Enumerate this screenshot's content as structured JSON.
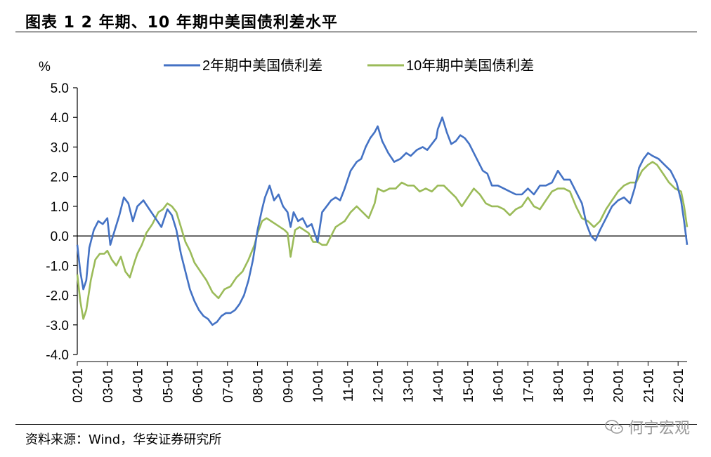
{
  "page_title": "图表 1 2 年期、10 年期中美国债利差水平",
  "source": "资料来源：Wind，华安证券研究所",
  "watermark": "何宁宏观",
  "colors": {
    "series1": "#4472c4",
    "series2": "#9bbb59",
    "axis": "#000000"
  },
  "chart_data": {
    "type": "line",
    "title": "",
    "ylabel": "%",
    "xlabel": "",
    "ylim": [
      -4.0,
      5.0
    ],
    "yticks": [
      "5.0",
      "4.0",
      "3.0",
      "2.0",
      "1.0",
      "0.0",
      "-1.0",
      "-2.0",
      "-3.0",
      "-4.0"
    ],
    "x_tick_labels": [
      "02-01",
      "03-01",
      "04-01",
      "05-01",
      "06-01",
      "07-01",
      "08-01",
      "09-01",
      "10-01",
      "11-01",
      "12-01",
      "13-01",
      "14-01",
      "15-01",
      "16-01",
      "17-01",
      "18-01",
      "19-01",
      "20-01",
      "21-01",
      "22-01"
    ],
    "x_range": [
      2002.0,
      2022.3
    ],
    "legend": [
      "2年期中美国债利差",
      "10年期中美国债利差"
    ],
    "series": [
      {
        "name": "2年期中美国债利差",
        "x": [
          2002.0,
          2002.1,
          2002.2,
          2002.3,
          2002.4,
          2002.55,
          2002.7,
          2002.85,
          2003.0,
          2003.1,
          2003.25,
          2003.4,
          2003.55,
          2003.7,
          2003.85,
          2004.0,
          2004.2,
          2004.4,
          2004.6,
          2004.8,
          2005.0,
          2005.15,
          2005.3,
          2005.45,
          2005.6,
          2005.75,
          2005.9,
          2006.05,
          2006.2,
          2006.35,
          2006.5,
          2006.65,
          2006.8,
          2006.95,
          2007.1,
          2007.25,
          2007.4,
          2007.55,
          2007.7,
          2007.85,
          2008.0,
          2008.15,
          2008.25,
          2008.4,
          2008.55,
          2008.7,
          2008.85,
          2009.0,
          2009.1,
          2009.2,
          2009.35,
          2009.5,
          2009.65,
          2009.8,
          2010.0,
          2010.15,
          2010.3,
          2010.45,
          2010.6,
          2010.75,
          2010.9,
          2011.1,
          2011.3,
          2011.45,
          2011.6,
          2011.75,
          2011.9,
          2012.0,
          2012.15,
          2012.35,
          2012.55,
          2012.75,
          2012.95,
          2013.1,
          2013.3,
          2013.5,
          2013.65,
          2013.8,
          2013.95,
          2014.0,
          2014.15,
          2014.3,
          2014.45,
          2014.6,
          2014.75,
          2014.9,
          2015.05,
          2015.2,
          2015.35,
          2015.5,
          2015.65,
          2015.8,
          2016.0,
          2016.2,
          2016.4,
          2016.6,
          2016.8,
          2017.0,
          2017.2,
          2017.4,
          2017.6,
          2017.8,
          2018.0,
          2018.2,
          2018.4,
          2018.6,
          2018.8,
          2018.95,
          2019.1,
          2019.25,
          2019.4,
          2019.6,
          2019.8,
          2020.0,
          2020.2,
          2020.4,
          2020.55,
          2020.7,
          2020.85,
          2021.0,
          2021.15,
          2021.35,
          2021.55,
          2021.75,
          2021.95,
          2022.1,
          2022.2,
          2022.3
        ],
        "values": [
          -0.3,
          -1.2,
          -1.8,
          -1.5,
          -0.4,
          0.2,
          0.5,
          0.4,
          0.6,
          -0.3,
          0.2,
          0.7,
          1.3,
          1.1,
          0.5,
          1.0,
          1.2,
          0.9,
          0.6,
          0.3,
          0.9,
          0.7,
          0.2,
          -0.6,
          -1.2,
          -1.8,
          -2.2,
          -2.5,
          -2.7,
          -2.8,
          -3.0,
          -2.9,
          -2.7,
          -2.6,
          -2.6,
          -2.5,
          -2.3,
          -2.0,
          -1.5,
          -0.8,
          0.2,
          0.9,
          1.3,
          1.7,
          1.2,
          1.4,
          1.0,
          0.8,
          0.3,
          0.8,
          0.5,
          0.6,
          0.3,
          0.4,
          -0.2,
          0.8,
          1.0,
          1.2,
          1.3,
          1.2,
          1.6,
          2.2,
          2.5,
          2.6,
          3.0,
          3.3,
          3.5,
          3.7,
          3.2,
          2.8,
          2.5,
          2.6,
          2.8,
          2.7,
          2.9,
          3.0,
          2.9,
          3.1,
          3.3,
          3.6,
          4.0,
          3.5,
          3.1,
          3.2,
          3.4,
          3.3,
          3.1,
          2.8,
          2.5,
          2.2,
          2.1,
          1.7,
          1.7,
          1.6,
          1.5,
          1.4,
          1.4,
          1.6,
          1.4,
          1.7,
          1.7,
          1.8,
          2.2,
          1.9,
          1.9,
          1.5,
          1.1,
          0.4,
          0.0,
          -0.15,
          0.2,
          0.6,
          1.0,
          1.2,
          1.3,
          1.1,
          1.6,
          2.3,
          2.6,
          2.8,
          2.7,
          2.6,
          2.4,
          2.2,
          1.8,
          1.2,
          0.5,
          -0.3
        ]
      },
      {
        "name": "10年期中美国债利差",
        "x": [
          2002.0,
          2002.1,
          2002.2,
          2002.3,
          2002.45,
          2002.6,
          2002.75,
          2002.9,
          2003.0,
          2003.15,
          2003.3,
          2003.45,
          2003.6,
          2003.75,
          2003.9,
          2004.0,
          2004.15,
          2004.3,
          2004.5,
          2004.7,
          2004.85,
          2005.0,
          2005.15,
          2005.3,
          2005.45,
          2005.6,
          2005.75,
          2005.9,
          2006.1,
          2006.3,
          2006.5,
          2006.7,
          2006.9,
          2007.1,
          2007.3,
          2007.5,
          2007.7,
          2007.9,
          2008.0,
          2008.15,
          2008.3,
          2008.45,
          2008.6,
          2008.75,
          2008.9,
          2009.0,
          2009.1,
          2009.25,
          2009.4,
          2009.55,
          2009.7,
          2009.85,
          2010.0,
          2010.15,
          2010.3,
          2010.45,
          2010.6,
          2010.75,
          2010.9,
          2011.1,
          2011.3,
          2011.5,
          2011.7,
          2011.9,
          2012.0,
          2012.2,
          2012.4,
          2012.6,
          2012.8,
          2013.0,
          2013.2,
          2013.4,
          2013.6,
          2013.8,
          2014.0,
          2014.2,
          2014.4,
          2014.6,
          2014.8,
          2015.0,
          2015.2,
          2015.4,
          2015.6,
          2015.8,
          2016.0,
          2016.2,
          2016.4,
          2016.6,
          2016.8,
          2017.0,
          2017.2,
          2017.4,
          2017.6,
          2017.8,
          2018.0,
          2018.2,
          2018.4,
          2018.6,
          2018.8,
          2019.0,
          2019.2,
          2019.4,
          2019.6,
          2019.8,
          2020.0,
          2020.2,
          2020.4,
          2020.6,
          2020.8,
          2021.0,
          2021.15,
          2021.3,
          2021.5,
          2021.7,
          2021.9,
          2022.1,
          2022.2,
          2022.3
        ],
        "values": [
          -1.3,
          -2.2,
          -2.8,
          -2.5,
          -1.5,
          -0.8,
          -0.6,
          -0.6,
          -0.5,
          -0.8,
          -1.0,
          -0.7,
          -1.2,
          -1.4,
          -0.9,
          -0.6,
          -0.3,
          0.1,
          0.4,
          0.8,
          0.9,
          1.1,
          1.0,
          0.8,
          0.3,
          -0.2,
          -0.5,
          -0.9,
          -1.2,
          -1.5,
          -1.9,
          -2.1,
          -1.8,
          -1.7,
          -1.4,
          -1.2,
          -0.8,
          -0.3,
          0.1,
          0.5,
          0.6,
          0.5,
          0.4,
          0.3,
          0.2,
          0.1,
          -0.7,
          0.2,
          0.3,
          0.2,
          0.1,
          -0.2,
          -0.2,
          -0.3,
          -0.3,
          0.0,
          0.3,
          0.4,
          0.5,
          0.8,
          1.0,
          0.8,
          0.6,
          1.1,
          1.6,
          1.5,
          1.6,
          1.6,
          1.8,
          1.7,
          1.7,
          1.5,
          1.6,
          1.5,
          1.7,
          1.7,
          1.5,
          1.3,
          1.0,
          1.3,
          1.6,
          1.4,
          1.1,
          1.0,
          1.0,
          0.9,
          0.7,
          0.9,
          1.0,
          1.3,
          1.0,
          0.9,
          1.2,
          1.5,
          1.6,
          1.6,
          1.5,
          1.0,
          0.6,
          0.5,
          0.3,
          0.5,
          0.9,
          1.2,
          1.5,
          1.7,
          1.8,
          1.8,
          2.2,
          2.4,
          2.5,
          2.4,
          2.1,
          1.8,
          1.6,
          1.5,
          1.0,
          0.3
        ]
      }
    ]
  }
}
